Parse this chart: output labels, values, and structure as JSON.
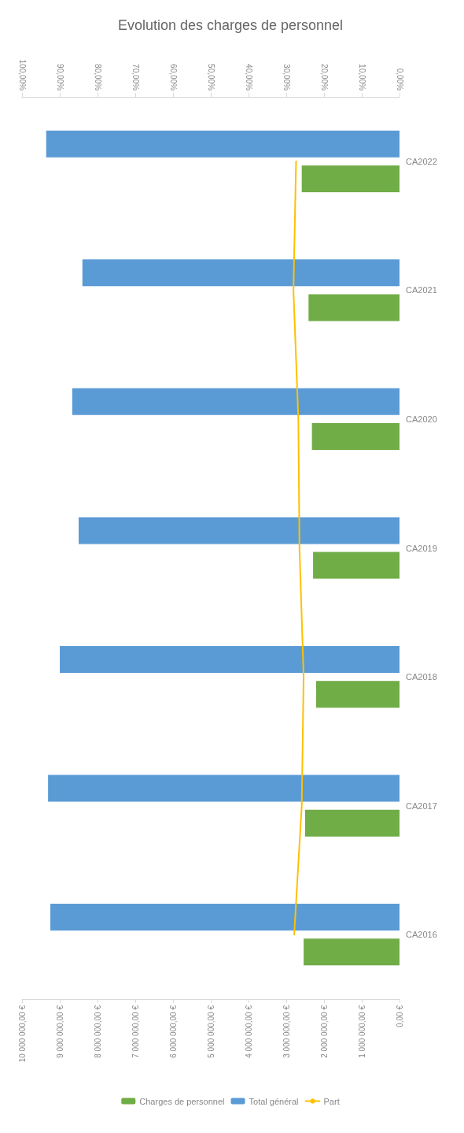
{
  "chart_data": {
    "type": "bar",
    "title": "Evolution des charges de personnel",
    "orientation": "horizontal",
    "categories": [
      "CA2022",
      "CA2021",
      "CA2020",
      "CA2019",
      "CA2018",
      "CA2017",
      "CA2016"
    ],
    "series": [
      {
        "name": "Charges de personnel",
        "color": "#70ad47",
        "values": [
          2590000,
          2410000,
          2320000,
          2290000,
          2210000,
          2500000,
          2540000
        ]
      },
      {
        "name": "Total général",
        "color": "#5b9bd5",
        "values": [
          9360000,
          8400000,
          8670000,
          8500000,
          9000000,
          9310000,
          9250000
        ]
      },
      {
        "name": "Part",
        "type": "line",
        "axis": "x2",
        "color": "#ffc000",
        "values": [
          27.4,
          28.1,
          26.8,
          26.5,
          25.4,
          25.9,
          27.9
        ]
      }
    ],
    "xlim": [
      10000000,
      0
    ],
    "xticks": [
      {
        "value": 0,
        "label": "0,00 €"
      },
      {
        "value": 1000000,
        "label": "1 000 000,00 €"
      },
      {
        "value": 2000000,
        "label": "2 000 000,00 €"
      },
      {
        "value": 3000000,
        "label": "3 000 000,00 €"
      },
      {
        "value": 4000000,
        "label": "4 000 000,00 €"
      },
      {
        "value": 5000000,
        "label": "5 000 000,00 €"
      },
      {
        "value": 6000000,
        "label": "6 000 000,00 €"
      },
      {
        "value": 7000000,
        "label": "7 000 000,00 €"
      },
      {
        "value": 8000000,
        "label": "8 000 000,00 €"
      },
      {
        "value": 9000000,
        "label": "9 000 000,00 €"
      },
      {
        "value": 10000000,
        "label": "10 000 000,00 €"
      }
    ],
    "x2lim": [
      100,
      0
    ],
    "x2ticks": [
      {
        "value": 0,
        "label": "0,00%"
      },
      {
        "value": 10,
        "label": "10,00%"
      },
      {
        "value": 20,
        "label": "20,00%"
      },
      {
        "value": 30,
        "label": "30,00%"
      },
      {
        "value": 40,
        "label": "40,00%"
      },
      {
        "value": 50,
        "label": "50,00%"
      },
      {
        "value": 60,
        "label": "60,00%"
      },
      {
        "value": 70,
        "label": "70,00%"
      },
      {
        "value": 80,
        "label": "80,00%"
      },
      {
        "value": 90,
        "label": "90,00%"
      },
      {
        "value": 100,
        "label": "100,00%"
      }
    ],
    "grid": false,
    "legend": "bottom",
    "marker": "none",
    "line_style": "solid"
  }
}
